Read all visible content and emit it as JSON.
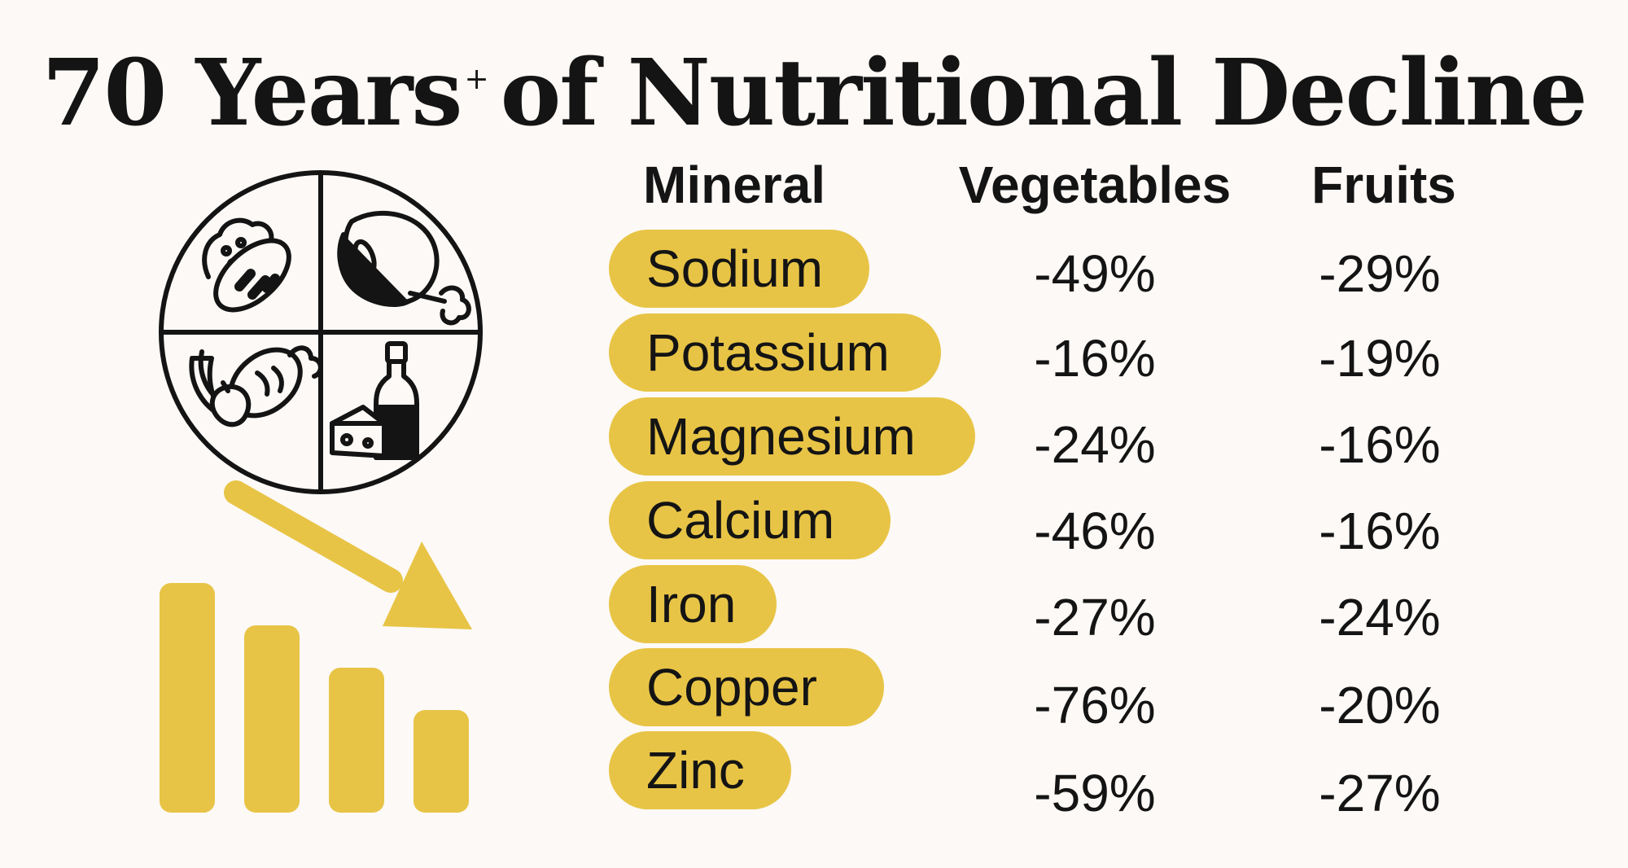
{
  "title": {
    "main": "70 Years",
    "superscript": "+",
    "rest": "of Nutritional Decline"
  },
  "table": {
    "headers": {
      "mineral": "Mineral",
      "vegetables": "Vegetables",
      "fruits": "Fruits"
    },
    "rows": [
      {
        "mineral": "Sodium",
        "vegetables": "-49%",
        "fruits": "-29%"
      },
      {
        "mineral": "Potassium",
        "vegetables": "-16%",
        "fruits": "-19%"
      },
      {
        "mineral": "Magnesium",
        "vegetables": "-24%",
        "fruits": "-16%"
      },
      {
        "mineral": "Calcium",
        "vegetables": "-46%",
        "fruits": "-16%"
      },
      {
        "mineral": "Iron",
        "vegetables": "-27%",
        "fruits": "-24%"
      },
      {
        "mineral": "Copper",
        "vegetables": "-76%",
        "fruits": "-20%"
      },
      {
        "mineral": "Zinc",
        "vegetables": "-59%",
        "fruits": "-27%"
      }
    ]
  },
  "icons": {
    "plate": "food-plate-icon",
    "arrow": "down-trend-arrow-icon",
    "bars": "declining-bars-icon"
  },
  "colors": {
    "accent": "#e8c446",
    "background": "#fcf9f6",
    "text": "#141414"
  }
}
